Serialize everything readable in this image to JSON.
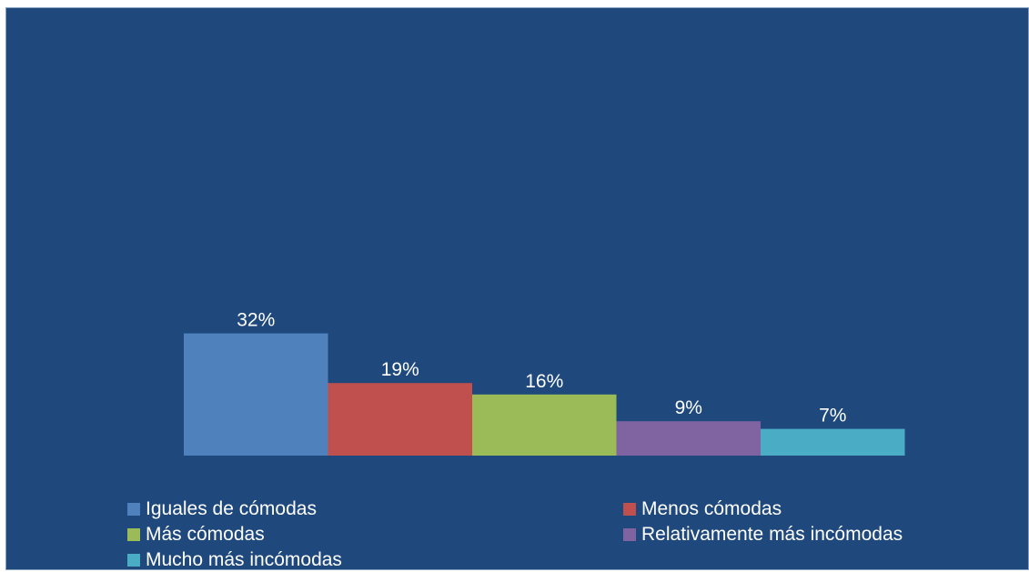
{
  "chart_data": {
    "type": "bar",
    "title": "",
    "xlabel": "",
    "ylabel": "",
    "unit": "%",
    "ylim": [
      0,
      32
    ],
    "grid": false,
    "legend_position": "bottom",
    "background_color": "#1f497d",
    "series": [
      {
        "name": "Iguales de cómodas",
        "value": 32,
        "label": "32%",
        "color": "#4f81bd"
      },
      {
        "name": "Menos cómodas",
        "value": 19,
        "label": "19%",
        "color": "#c0504d"
      },
      {
        "name": "Más cómodas",
        "value": 16,
        "label": "16%",
        "color": "#9bbb59"
      },
      {
        "name": "Relativamente más incómodas",
        "value": 9,
        "label": "9%",
        "color": "#8064a2"
      },
      {
        "name": "Mucho más incómodas",
        "value": 7,
        "label": "7%",
        "color": "#4bacc6"
      }
    ]
  }
}
